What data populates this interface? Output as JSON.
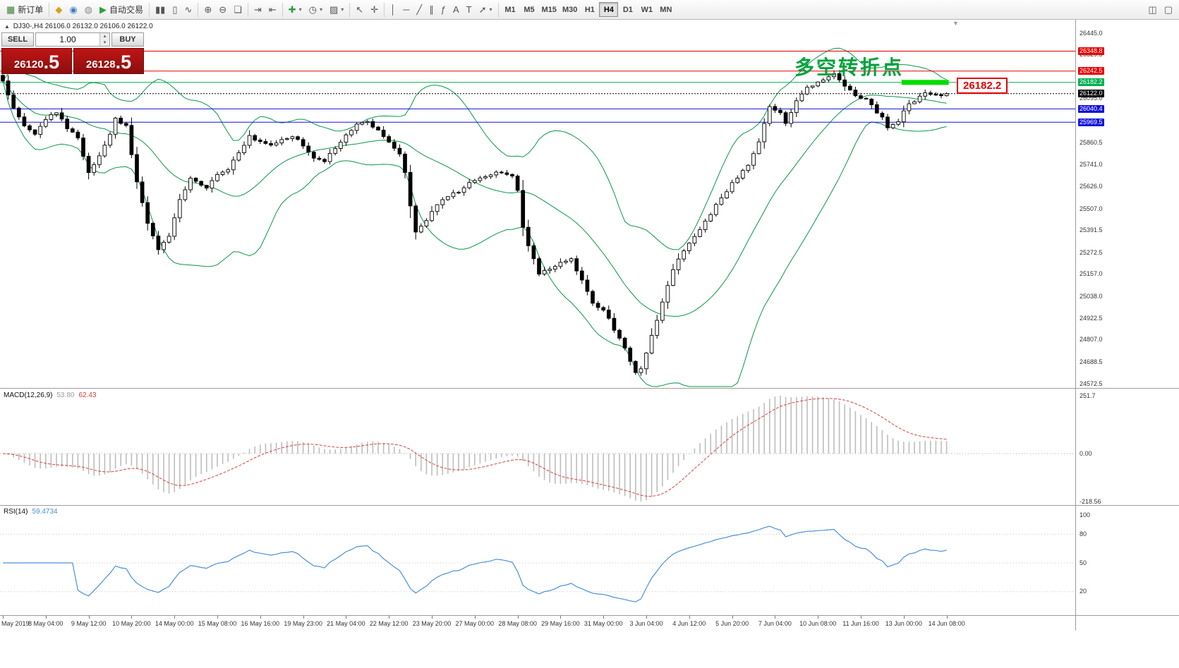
{
  "icons": {
    "spin_up": "▴",
    "spin_down": "▾",
    "symbol_marker": "▲",
    "shift_marker": "▼"
  },
  "toolbar": {
    "groups": [
      {
        "name": "orders",
        "items": [
          {
            "name": "new-order-button",
            "glyph": "▦",
            "glyph_color": "#3a7d33",
            "label": "新订单"
          }
        ]
      },
      {
        "name": "services",
        "items": [
          {
            "name": "market-button",
            "glyph": "◆",
            "glyph_color": "#d4a017"
          },
          {
            "name": "signals-button",
            "glyph": "◉",
            "glyph_color": "#3f7fbf"
          },
          {
            "name": "vps-button",
            "glyph": "◍",
            "glyph_color": "#888888"
          },
          {
            "name": "auto-trading-button",
            "glyph": "▶",
            "glyph_color": "#2e9e3f",
            "label": "自动交易"
          }
        ]
      },
      {
        "name": "chart-types",
        "items": [
          {
            "name": "bar-chart-button",
            "glyph": "▮▮"
          },
          {
            "name": "candlestick-chart-button",
            "glyph": "▯"
          },
          {
            "name": "line-chart-button",
            "glyph": "∿"
          }
        ]
      },
      {
        "name": "zoom",
        "items": [
          {
            "name": "zoom-in-button",
            "glyph": "⊕"
          },
          {
            "name": "zoom-out-button",
            "glyph": "⊖"
          },
          {
            "name": "tile-windows-button",
            "glyph": "❏"
          }
        ]
      },
      {
        "name": "scroll",
        "items": [
          {
            "name": "auto-scroll-button",
            "glyph": "⇥"
          },
          {
            "name": "chart-shift-button",
            "glyph": "⇤"
          }
        ]
      },
      {
        "name": "objects",
        "items": [
          {
            "name": "add-indicator-button",
            "glyph": "✚",
            "glyph_color": "#2e9e3f",
            "caret": true
          },
          {
            "name": "periods-button",
            "glyph": "◷",
            "caret": true
          },
          {
            "name": "templates-button",
            "glyph": "▨",
            "caret": true
          }
        ]
      },
      {
        "name": "pointer",
        "items": [
          {
            "name": "cursor-button",
            "glyph": "↖"
          },
          {
            "name": "crosshair-button",
            "glyph": "✛"
          }
        ]
      },
      {
        "name": "draw",
        "items": [
          {
            "name": "vertical-line-button",
            "glyph": "│"
          },
          {
            "name": "horizontal-line-button",
            "glyph": "─"
          },
          {
            "name": "trendline-button",
            "glyph": "╱"
          },
          {
            "name": "channel-button",
            "glyph": "∥"
          },
          {
            "name": "fibonacci-button",
            "glyph": "ƒ"
          },
          {
            "name": "text-button",
            "glyph": "A"
          },
          {
            "name": "label-button",
            "glyph": "T"
          },
          {
            "name": "arrows-button",
            "glyph": "➚",
            "caret": true
          }
        ]
      }
    ],
    "timeframes": [
      {
        "label": "M1"
      },
      {
        "label": "M5"
      },
      {
        "label": "M15"
      },
      {
        "label": "M30"
      },
      {
        "label": "H1"
      },
      {
        "label": "H4",
        "active": true
      },
      {
        "label": "D1"
      },
      {
        "label": "W1"
      },
      {
        "label": "MN"
      }
    ],
    "right_items": [
      {
        "name": "data-window-button",
        "glyph": "◫"
      },
      {
        "name": "fullscreen-button",
        "glyph": "▢"
      }
    ]
  },
  "chart": {
    "symbol_line": "DJ30-,H4 26106.0 26132.0 26106.0 26122.0",
    "annotation": {
      "text": "多空转折点",
      "color": "#00a33c"
    },
    "callout": {
      "text": "26182.2",
      "color": "#e80000"
    }
  },
  "trade_panel": {
    "sell_label": "SELL",
    "buy_label": "BUY",
    "volume": "1.00",
    "sell_price_int": "26120",
    "sell_price_frac": ".5",
    "buy_price_int": "26128",
    "buy_price_frac": ".5"
  },
  "macd_panel": {
    "title": "MACD(12,26,9)",
    "main_value": "53.80",
    "signal_value": "62.43",
    "axis": [
      "251.7",
      "0.00",
      "-218.56"
    ]
  },
  "rsi_panel": {
    "title": "RSI(14)",
    "value": "59.4734",
    "axis": [
      100,
      80,
      50,
      20
    ]
  },
  "time_axis": {
    "labels": [
      "May 2019",
      "8 May 04:00",
      "9 May 12:00",
      "10 May 20:00",
      "14 May 00:00",
      "15 May 08:00",
      "16 May 16:00",
      "19 May 23:00",
      "21 May 04:00",
      "22 May 12:00",
      "23 May 20:00",
      "27 May 00:00",
      "28 May 08:00",
      "29 May 16:00",
      "31 May 00:00",
      "3 Jun 04:00",
      "4 Jun 12:00",
      "5 Jun 20:00",
      "7 Jun 04:00",
      "10 Jun 08:00",
      "11 Jun 16:00",
      "13 Jun 00:00",
      "14 Jun 08:00"
    ]
  },
  "chart_data": {
    "type": "candlestick",
    "symbol": "DJ30-",
    "timeframe": "H4",
    "ohlc_display": {
      "open": 26106.0,
      "high": 26132.0,
      "low": 26106.0,
      "close": 26122.0
    },
    "candle_count": 177,
    "price_axis": {
      "max": 26445.0,
      "min": 24572.5,
      "gray_ticks": [
        26445.0,
        26329.5,
        26095.0,
        25860.5,
        25741.0,
        25626.0,
        25507.0,
        25391.5,
        25272.5,
        25157.0,
        25038.0,
        24922.5,
        24807.0,
        24688.5,
        24572.5
      ]
    },
    "levels": [
      {
        "price": 26348.8,
        "color": "#e80000",
        "style": "solid",
        "axis_label": "26348.8"
      },
      {
        "price": 26242.5,
        "color": "#e80000",
        "style": "solid",
        "axis_label": "26242.5"
      },
      {
        "price": 26182.2,
        "color": "#00b050",
        "style": "solid",
        "axis_label": "26182.2"
      },
      {
        "price": 26122.0,
        "color": "#000000",
        "style": "dash",
        "axis_label": "26122.0"
      },
      {
        "price": 26040.4,
        "color": "#1212dd",
        "style": "solid",
        "axis_label": "26040.4"
      },
      {
        "price": 25969.5,
        "color": "#1212dd",
        "style": "solid",
        "axis_label": "25969.5"
      }
    ],
    "highlight_segment": {
      "from_candle": 168,
      "to_candle": 176,
      "price": 26182.2,
      "color": "#00dd00"
    },
    "close_anchors": [
      [
        0,
        26185
      ],
      [
        1,
        26120
      ],
      [
        2,
        26050
      ],
      [
        4,
        25950
      ],
      [
        6,
        25905
      ],
      [
        8,
        25990
      ],
      [
        10,
        26025
      ],
      [
        12,
        25935
      ],
      [
        14,
        25885
      ],
      [
        16,
        25705
      ],
      [
        18,
        25785
      ],
      [
        20,
        25905
      ],
      [
        21,
        25995
      ],
      [
        23,
        25945
      ],
      [
        25,
        25655
      ],
      [
        27,
        25425
      ],
      [
        29,
        25285
      ],
      [
        31,
        25365
      ],
      [
        33,
        25555
      ],
      [
        35,
        25665
      ],
      [
        38,
        25615
      ],
      [
        40,
        25685
      ],
      [
        42,
        25715
      ],
      [
        44,
        25805
      ],
      [
        46,
        25895
      ],
      [
        48,
        25865
      ],
      [
        50,
        25845
      ],
      [
        52,
        25875
      ],
      [
        54,
        25895
      ],
      [
        56,
        25845
      ],
      [
        58,
        25785
      ],
      [
        60,
        25765
      ],
      [
        62,
        25825
      ],
      [
        64,
        25905
      ],
      [
        66,
        25955
      ],
      [
        68,
        25975
      ],
      [
        70,
        25925
      ],
      [
        72,
        25865
      ],
      [
        74,
        25795
      ],
      [
        75,
        25705
      ],
      [
        76,
        25520
      ],
      [
        77,
        25385
      ],
      [
        79,
        25445
      ],
      [
        81,
        25535
      ],
      [
        83,
        25575
      ],
      [
        85,
        25595
      ],
      [
        87,
        25645
      ],
      [
        89,
        25665
      ],
      [
        91,
        25695
      ],
      [
        93,
        25705
      ],
      [
        95,
        25675
      ],
      [
        96,
        25605
      ],
      [
        97,
        25405
      ],
      [
        98,
        25305
      ],
      [
        100,
        25165
      ],
      [
        102,
        25185
      ],
      [
        104,
        25225
      ],
      [
        106,
        25235
      ],
      [
        108,
        25125
      ],
      [
        110,
        25005
      ],
      [
        112,
        24965
      ],
      [
        114,
        24865
      ],
      [
        116,
        24755
      ],
      [
        118,
        24625
      ],
      [
        119,
        24645
      ],
      [
        121,
        24825
      ],
      [
        123,
        25005
      ],
      [
        125,
        25185
      ],
      [
        127,
        25285
      ],
      [
        129,
        25355
      ],
      [
        131,
        25435
      ],
      [
        133,
        25525
      ],
      [
        135,
        25605
      ],
      [
        137,
        25675
      ],
      [
        139,
        25745
      ],
      [
        141,
        25865
      ],
      [
        143,
        26055
      ],
      [
        145,
        26025
      ],
      [
        146,
        25965
      ],
      [
        148,
        26085
      ],
      [
        150,
        26155
      ],
      [
        152,
        26185
      ],
      [
        154,
        26215
      ],
      [
        155,
        26235
      ],
      [
        157,
        26165
      ],
      [
        159,
        26105
      ],
      [
        161,
        26095
      ],
      [
        163,
        26025
      ],
      [
        164,
        25995
      ],
      [
        165,
        25945
      ],
      [
        167,
        25975
      ],
      [
        168,
        26035
      ],
      [
        170,
        26085
      ],
      [
        172,
        26125
      ],
      [
        174,
        26115
      ],
      [
        176,
        26122
      ]
    ],
    "bollinger": {
      "period": 20,
      "deviation": 2,
      "color": "#0a9648"
    },
    "macd": {
      "fast": 12,
      "slow": 26,
      "signal": 9,
      "histogram_color": "#bdbdbd",
      "signal_color": "#d84040"
    },
    "rsi": {
      "period": 14,
      "color": "#4a90d9",
      "levels": [
        80,
        50,
        20
      ]
    }
  }
}
